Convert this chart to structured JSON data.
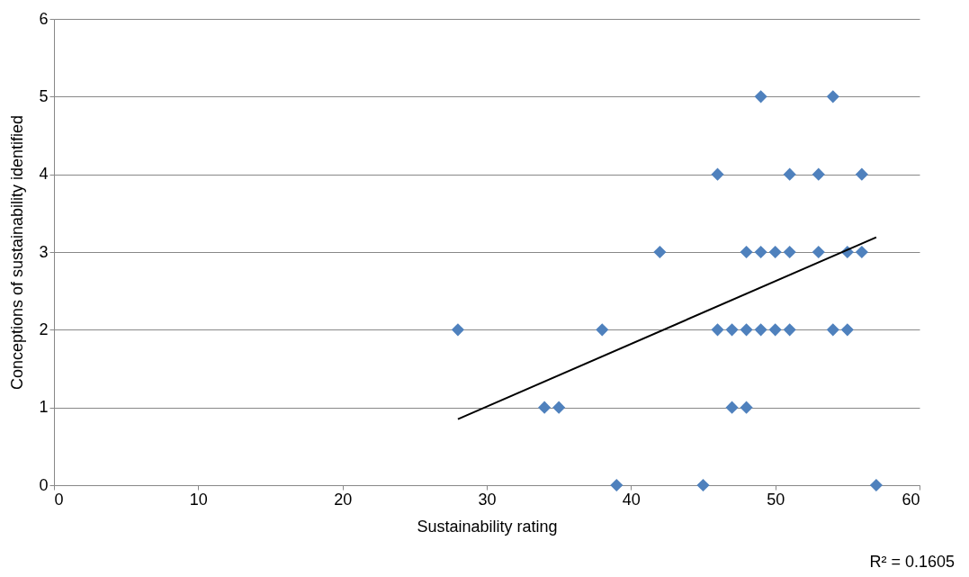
{
  "chart_data": {
    "type": "scatter",
    "xlabel": "Sustainability rating",
    "ylabel": "Conceptions of sustainability identified",
    "annotations": [
      "R² = 0.1605"
    ],
    "xlim": [
      0,
      60
    ],
    "xticks": [
      0,
      10,
      20,
      30,
      40,
      50,
      60
    ],
    "ylim": [
      0,
      6
    ],
    "yticks": [
      0,
      1,
      2,
      3,
      4,
      5,
      6
    ],
    "grid": "y",
    "series": [
      {
        "type": "scatter",
        "color": "#4f81bd",
        "marker": "diamond",
        "x": [
          49,
          54,
          46,
          51,
          53,
          56,
          42,
          48,
          49,
          50,
          51,
          53,
          55,
          56,
          28,
          38,
          46,
          47,
          48,
          49,
          50,
          51,
          54,
          55,
          34,
          35,
          47,
          48,
          39,
          45,
          57
        ],
        "values": [
          5,
          5,
          4,
          4,
          4,
          4,
          3,
          3,
          3,
          3,
          3,
          3,
          3,
          3,
          2,
          2,
          2,
          2,
          2,
          2,
          2,
          2,
          2,
          2,
          1,
          1,
          1,
          1,
          0,
          0,
          0
        ]
      },
      {
        "type": "line",
        "color": "#000000",
        "marker": "none",
        "x": [
          28,
          57
        ],
        "values": [
          0.85,
          3.19
        ]
      }
    ]
  }
}
